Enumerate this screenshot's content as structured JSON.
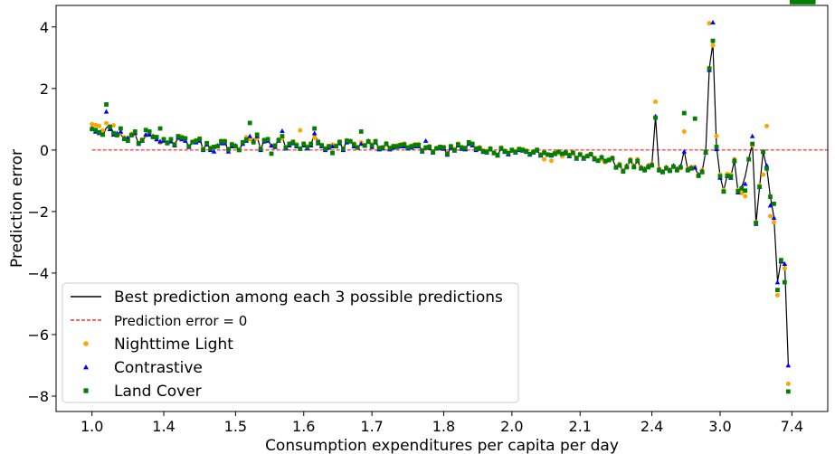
{
  "chart_data": {
    "type": "scatter",
    "title": "",
    "xlabel": "Consumption expenditures per capita per day",
    "ylabel": "Prediction error",
    "x_tick_labels": [
      "1.0",
      "1.4",
      "1.5",
      "1.6",
      "1.7",
      "1.8",
      "2.0",
      "2.1",
      "2.4",
      "3.0",
      "7.4"
    ],
    "x_tick_positions": [
      1,
      21,
      41,
      60,
      79,
      99,
      118,
      137,
      157,
      176,
      196
    ],
    "xlim": [
      -9,
      206
    ],
    "ylim": [
      -8.5,
      4.7
    ],
    "y_ticks": [
      4,
      2,
      0,
      -2,
      -4,
      -6,
      -8
    ],
    "grid": false,
    "legend_position": "lower-left",
    "reference_line": {
      "name": "Prediction error = 0",
      "y": 0,
      "color": "#ff0000"
    },
    "colors": {
      "nighttime": "#ffa500",
      "contrastive": "#0000ff",
      "landcover": "#008000",
      "best": "#000000"
    },
    "legend": [
      {
        "label": "Best prediction among each 3 possible predictions",
        "kind": "line"
      },
      {
        "label": "Prediction error = 0",
        "kind": "dashed"
      },
      {
        "label": "Nighttime Light",
        "kind": "circle"
      },
      {
        "label": "Contrastive",
        "kind": "triangle"
      },
      {
        "label": "Land Cover",
        "kind": "square"
      }
    ],
    "x": [
      1,
      2,
      3,
      4,
      5,
      6,
      7,
      8,
      9,
      10,
      11,
      12,
      13,
      14,
      15,
      16,
      17,
      18,
      19,
      20,
      21,
      22,
      23,
      24,
      25,
      26,
      27,
      28,
      29,
      30,
      31,
      32,
      33,
      34,
      35,
      36,
      37,
      38,
      39,
      40,
      41,
      42,
      43,
      44,
      45,
      46,
      47,
      48,
      49,
      50,
      51,
      52,
      53,
      54,
      55,
      56,
      57,
      58,
      59,
      60,
      61,
      62,
      63,
      64,
      65,
      66,
      67,
      68,
      69,
      70,
      71,
      72,
      73,
      74,
      75,
      76,
      77,
      78,
      79,
      80,
      81,
      82,
      83,
      84,
      85,
      86,
      87,
      88,
      89,
      90,
      91,
      92,
      93,
      94,
      95,
      96,
      97,
      98,
      99,
      100,
      101,
      102,
      103,
      104,
      105,
      106,
      107,
      108,
      109,
      110,
      111,
      112,
      113,
      114,
      115,
      116,
      117,
      118,
      119,
      120,
      121,
      122,
      123,
      124,
      125,
      126,
      127,
      128,
      129,
      130,
      131,
      132,
      133,
      134,
      135,
      136,
      137,
      138,
      139,
      140,
      141,
      142,
      143,
      144,
      145,
      146,
      147,
      148,
      149,
      150,
      151,
      152,
      153,
      154,
      155,
      156,
      157,
      158,
      159,
      160,
      161,
      162,
      163,
      164,
      165,
      166,
      167,
      168,
      169,
      170,
      171,
      172,
      173,
      174,
      175,
      176,
      177,
      178,
      179,
      180,
      181,
      182,
      183,
      184,
      185,
      186,
      187,
      188,
      189,
      190,
      191,
      192,
      193,
      194,
      195,
      196,
      197,
      198,
      199,
      200,
      201,
      202
    ],
    "series": [
      {
        "name": "Best prediction among each 3 possible predictions",
        "marker": "line",
        "values": [
          0.66,
          0.62,
          0.55,
          0.47,
          0.72,
          0.82,
          0.55,
          0.44,
          0.51,
          0.36,
          0.36,
          0.46,
          0.52,
          0.19,
          0.27,
          0.46,
          0.55,
          0.4,
          0.38,
          0.2,
          0.33,
          0.22,
          0.3,
          0.14,
          0.42,
          0.37,
          0.36,
          0.08,
          0.24,
          0.28,
          0.36,
          0.01,
          0.2,
          0.03,
          0.09,
          0.1,
          0.25,
          0.25,
          0.0,
          0.16,
          0.11,
          -0.02,
          0.23,
          0.33,
          0.41,
          0.27,
          0.43,
          0.03,
          0.3,
          0.33,
          0.11,
          0.11,
          0.33,
          0.43,
          0.07,
          0.18,
          0.24,
          0.14,
          0.03,
          0.17,
          0.08,
          0.17,
          0.53,
          0.24,
          0.14,
          0.02,
          0.1,
          0.14,
          0.1,
          0.25,
          0.03,
          0.29,
          0.26,
          0.15,
          0.06,
          0.22,
          0.13,
          0.26,
          0.13,
          0.27,
          0.04,
          0.06,
          0.18,
          0.04,
          0.1,
          0.11,
          0.15,
          0.15,
          0.06,
          0.11,
          0.14,
          0.15,
          -0.04,
          0.06,
          0.09,
          -0.07,
          0.03,
          0.09,
          0.06,
          -0.15,
          0.1,
          -0.01,
          0.16,
          0.06,
          0.04,
          0.22,
          0.18,
          0.02,
          0.05,
          -0.05,
          -0.07,
          0.03,
          -0.11,
          -0.17,
          0.05,
          -0.05,
          -0.12,
          -0.01,
          -0.07,
          0.02,
          -0.01,
          -0.05,
          -0.14,
          -0.07,
          -0.01,
          -0.17,
          -0.1,
          -0.16,
          -0.17,
          -0.12,
          -0.06,
          -0.13,
          -0.09,
          -0.18,
          -0.1,
          -0.27,
          -0.16,
          -0.27,
          -0.21,
          -0.15,
          -0.28,
          -0.36,
          -0.24,
          -0.36,
          -0.34,
          -0.28,
          -0.58,
          -0.5,
          -0.7,
          -0.55,
          -0.35,
          -0.55,
          -0.36,
          -0.6,
          -0.65,
          -0.55,
          -0.48,
          1.08,
          -0.65,
          -0.72,
          -0.6,
          -0.67,
          -0.52,
          -0.65,
          -0.55,
          -0.02,
          -0.65,
          -0.6,
          -0.58,
          -0.82,
          -0.7,
          -0.05,
          2.67,
          3.47,
          0.12,
          -0.85,
          -1.33,
          -0.82,
          -0.85,
          -0.35,
          -1.35,
          -1.23,
          -0.86,
          -0.28,
          0.21,
          -2.38,
          -1.21,
          -0.05,
          -0.58,
          -1.52,
          -2.18,
          -4.28,
          -3.6,
          -3.7,
          -7.0
        ]
      },
      {
        "name": "Nighttime Light",
        "marker": "circle",
        "values": [
          0.84,
          0.81,
          0.78,
          0.64,
          0.87,
          0.75,
          0.8,
          0.48,
          0.55,
          0.41,
          0.38,
          0.53,
          0.52,
          0.23,
          0.35,
          0.48,
          0.6,
          0.45,
          0.42,
          0.24,
          0.35,
          0.25,
          0.35,
          0.2,
          0.38,
          0.44,
          0.38,
          0.11,
          0.27,
          0.32,
          0.38,
          0.05,
          0.23,
          0.08,
          0.11,
          0.13,
          0.3,
          0.3,
          0.04,
          0.2,
          0.13,
          0.03,
          0.26,
          0.41,
          0.35,
          0.32,
          0.38,
          0.06,
          0.33,
          0.36,
          0.13,
          0.16,
          0.35,
          0.38,
          0.1,
          0.21,
          0.27,
          0.19,
          0.64,
          0.21,
          0.12,
          0.2,
          0.4,
          0.29,
          0.17,
          0.06,
          0.13,
          0.18,
          0.15,
          0.28,
          0.06,
          0.32,
          0.28,
          0.21,
          0.1,
          0.25,
          0.16,
          0.28,
          0.19,
          0.3,
          0.08,
          0.09,
          0.22,
          0.08,
          0.14,
          0.15,
          0.18,
          0.21,
          0.09,
          0.14,
          0.19,
          0.2,
          0.0,
          0.09,
          0.13,
          -0.04,
          0.07,
          0.11,
          0.1,
          -0.1,
          0.12,
          0.03,
          0.21,
          0.1,
          0.07,
          0.22,
          0.2,
          0.06,
          0.09,
          -0.01,
          -0.03,
          0.06,
          -0.08,
          -0.15,
          0.08,
          -0.02,
          -0.1,
          0.02,
          -0.04,
          0.04,
          0.03,
          -0.02,
          -0.12,
          -0.04,
          0.02,
          -0.14,
          -0.3,
          -0.14,
          -0.35,
          -0.09,
          -0.1,
          -0.2,
          -0.12,
          -0.15,
          -0.12,
          -0.25,
          -0.12,
          -0.25,
          -0.18,
          -0.12,
          -0.25,
          -0.33,
          -0.3,
          -0.4,
          -0.3,
          -0.25,
          -0.55,
          -0.45,
          -0.65,
          -0.5,
          -0.3,
          -0.5,
          -0.3,
          -0.55,
          -0.6,
          -0.5,
          -0.45,
          1.57,
          -0.6,
          -0.7,
          -0.55,
          -0.65,
          -0.55,
          -0.6,
          -0.6,
          0.6,
          -0.6,
          -0.55,
          -0.55,
          -0.8,
          -0.65,
          -0.1,
          4.12,
          3.4,
          0.45,
          -0.8,
          -1.3,
          -0.78,
          -0.8,
          -0.3,
          -1.3,
          -1.4,
          -1.5,
          -0.3,
          0.15,
          -2.35,
          -1.15,
          -0.8,
          0.78,
          -2.15,
          -2.35,
          -4.72,
          -3.65,
          -3.85,
          -7.6
        ]
      },
      {
        "name": "Contrastive",
        "marker": "triangle",
        "values": [
          0.7,
          0.6,
          0.55,
          0.5,
          1.25,
          0.68,
          0.5,
          0.55,
          0.6,
          0.38,
          0.4,
          0.5,
          0.55,
          0.2,
          0.3,
          0.5,
          0.5,
          0.45,
          0.35,
          0.28,
          0.3,
          0.25,
          0.28,
          0.15,
          0.4,
          0.35,
          0.3,
          0.1,
          0.25,
          0.25,
          0.3,
          0.0,
          0.18,
          0.0,
          -0.05,
          0.15,
          0.22,
          0.22,
          -0.05,
          0.12,
          0.15,
          0.0,
          0.2,
          0.3,
          0.45,
          0.3,
          0.45,
          0.0,
          0.28,
          0.3,
          0.15,
          0.1,
          0.3,
          0.62,
          0.05,
          0.15,
          0.22,
          0.12,
          0.05,
          0.15,
          0.05,
          0.15,
          0.55,
          0.22,
          0.12,
          0.0,
          0.08,
          0.12,
          0.12,
          0.22,
          0.0,
          0.25,
          0.3,
          0.12,
          0.08,
          0.2,
          0.15,
          0.3,
          0.1,
          0.25,
          0.02,
          0.05,
          0.2,
          0.02,
          0.08,
          0.1,
          0.12,
          0.12,
          0.05,
          0.08,
          0.12,
          0.12,
          -0.05,
          0.3,
          0.07,
          -0.08,
          0.05,
          0.07,
          0.04,
          -0.15,
          0.08,
          -0.02,
          0.15,
          0.04,
          0.02,
          0.2,
          0.15,
          0.0,
          0.04,
          -0.06,
          -0.08,
          0.02,
          -0.1,
          -0.18,
          0.04,
          -0.06,
          -0.14,
          -0.02,
          -0.08,
          0.0,
          -0.02,
          -0.06,
          -0.15,
          -0.08,
          -0.02,
          -0.18,
          -0.1,
          -0.15,
          -0.18,
          -0.13,
          -0.05,
          -0.12,
          -0.1,
          -0.2,
          -0.08,
          -0.28,
          -0.15,
          -0.28,
          -0.2,
          -0.14,
          -0.3,
          -0.35,
          -0.22,
          -0.35,
          -0.32,
          -0.26,
          -0.55,
          -0.48,
          -0.68,
          -0.52,
          -0.33,
          -0.52,
          -0.34,
          -0.58,
          -0.62,
          -0.52,
          -0.47,
          1.1,
          -0.62,
          -0.7,
          -0.58,
          -0.64,
          -0.5,
          -0.62,
          -0.52,
          -0.05,
          -0.62,
          -0.58,
          -0.57,
          -0.8,
          -0.68,
          -0.08,
          2.6,
          4.15,
          0.03,
          -0.9,
          -1.35,
          -0.85,
          -0.9,
          -0.33,
          -1.38,
          -1.22,
          -1.1,
          -0.3,
          0.45,
          -2.4,
          -1.2,
          -0.05,
          -0.5,
          -1.8,
          -2.2,
          -4.3,
          -3.62,
          -3.7,
          -7.0
        ]
      },
      {
        "name": "Land Cover",
        "marker": "square",
        "values": [
          0.68,
          0.65,
          0.58,
          0.5,
          1.48,
          0.75,
          0.55,
          0.48,
          0.7,
          0.36,
          0.3,
          0.48,
          0.6,
          0.22,
          0.32,
          0.65,
          0.6,
          0.42,
          0.42,
          0.7,
          0.35,
          0.22,
          0.35,
          0.18,
          0.45,
          0.4,
          0.38,
          0.12,
          0.26,
          0.3,
          0.36,
          0.02,
          0.22,
          0.05,
          0.1,
          0.12,
          0.28,
          0.28,
          0.02,
          0.18,
          0.12,
          0.0,
          0.25,
          0.34,
          0.88,
          0.25,
          0.5,
          0.04,
          0.32,
          0.35,
          -0.12,
          0.14,
          0.32,
          0.45,
          0.08,
          0.2,
          0.26,
          0.15,
          0.04,
          0.2,
          0.09,
          0.2,
          0.7,
          0.26,
          0.15,
          0.04,
          0.12,
          -0.1,
          0.12,
          0.26,
          0.04,
          0.3,
          0.28,
          0.18,
          0.08,
          0.6,
          0.14,
          0.28,
          0.15,
          0.28,
          0.06,
          0.08,
          0.2,
          0.06,
          0.12,
          0.12,
          0.16,
          0.18,
          0.08,
          0.12,
          0.16,
          0.16,
          -0.02,
          0.08,
          0.1,
          -0.06,
          0.05,
          0.1,
          0.08,
          -0.12,
          0.12,
          0.0,
          0.18,
          0.08,
          0.06,
          0.25,
          0.2,
          0.04,
          0.06,
          -0.04,
          -0.06,
          0.04,
          -0.1,
          -0.16,
          0.06,
          -0.04,
          -0.1,
          0.0,
          -0.06,
          0.03,
          0.0,
          -0.04,
          -0.13,
          -0.06,
          0.0,
          -0.16,
          -0.09,
          -0.15,
          -0.16,
          -0.11,
          -0.06,
          -0.12,
          -0.08,
          -0.17,
          -0.09,
          -0.26,
          -0.15,
          -0.26,
          -0.2,
          -0.14,
          -0.28,
          -0.35,
          -0.24,
          -0.36,
          -0.33,
          -0.27,
          -0.57,
          -0.5,
          -0.7,
          -0.56,
          -0.35,
          -0.56,
          -0.36,
          -0.6,
          -0.66,
          -0.56,
          -0.5,
          1.05,
          -0.66,
          -0.72,
          -0.6,
          -0.68,
          -0.54,
          -0.66,
          -0.56,
          1.2,
          -0.66,
          -0.6,
          1.02,
          -0.84,
          -0.72,
          -0.06,
          2.65,
          3.55,
          0.1,
          -0.85,
          -1.35,
          -0.84,
          -0.86,
          -0.36,
          -1.34,
          -1.25,
          -1.32,
          -0.3,
          0.2,
          -2.37,
          -1.2,
          -0.06,
          -0.6,
          -1.52,
          -1.75,
          -4.55,
          -3.58,
          -4.3,
          -7.85
        ]
      }
    ]
  }
}
